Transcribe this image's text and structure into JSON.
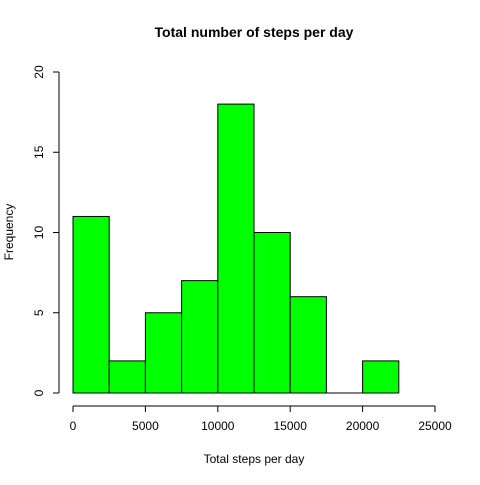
{
  "chart_data": {
    "type": "bar",
    "title": "Total number of steps per day",
    "xlabel": "Total steps per day",
    "ylabel": "Frequency",
    "bin_edges": [
      0,
      2500,
      5000,
      7500,
      10000,
      12500,
      15000,
      17500,
      20000,
      22500
    ],
    "values": [
      11,
      2,
      5,
      7,
      18,
      10,
      6,
      0,
      2
    ],
    "xlim": [
      0,
      25000
    ],
    "ylim": [
      0,
      20
    ],
    "x_ticks": [
      0,
      5000,
      10000,
      15000,
      20000,
      25000
    ],
    "y_ticks": [
      0,
      5,
      10,
      15,
      20
    ],
    "bar_color": "#00ff00",
    "bar_edge_color": "#000000",
    "grid": false
  }
}
